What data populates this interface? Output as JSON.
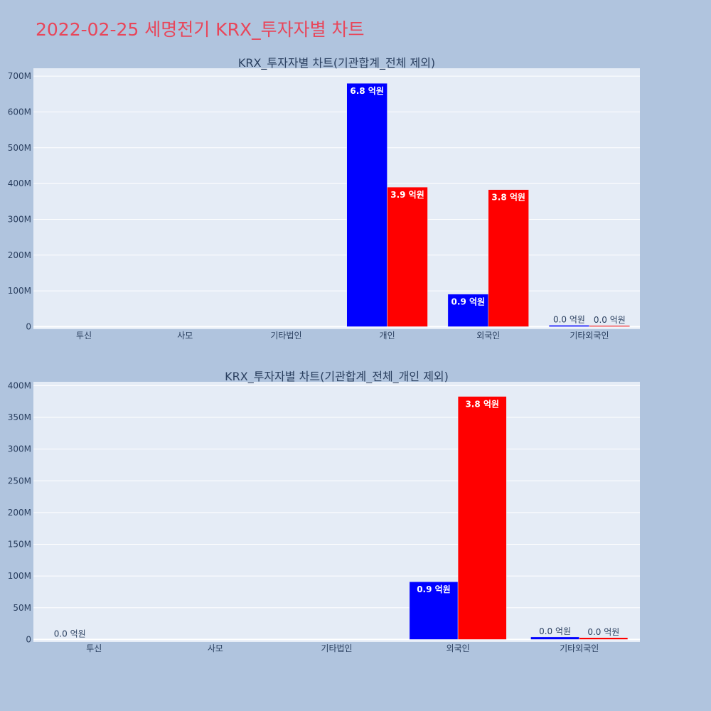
{
  "page": {
    "title": "2022-02-25 세명전기 KRX_투자자별 차트"
  },
  "colors": {
    "page_bg": "#b0c4de",
    "plot_bg": "#e5ecf6",
    "grid": "#ffffff",
    "title": "#e8465a",
    "text": "#2a3f5f",
    "buy": "#0000ff",
    "sell": "#ff0000"
  },
  "chart_data": [
    {
      "type": "bar",
      "title": "KRX_투자자별 차트(기관합계_전체 제외)",
      "categories": [
        "투신",
        "사모",
        "기타법인",
        "개인",
        "외국인",
        "기타외국인"
      ],
      "series": [
        {
          "color": "#0000ff",
          "values": [
            0,
            0,
            0,
            680000000,
            91000000,
            4000000
          ],
          "labels": [
            "",
            "",
            "",
            "6.8 억원",
            "0.9 억원",
            "0.0 억원"
          ]
        },
        {
          "color": "#ff0000",
          "values": [
            0,
            0,
            0,
            390000000,
            383000000,
            3000000
          ],
          "labels": [
            "",
            "",
            "",
            "3.9 억원",
            "3.8 억원",
            "0.0 억원"
          ]
        }
      ],
      "ylim": [
        -7000000,
        722000000
      ],
      "yticks": [
        0,
        100000000,
        200000000,
        300000000,
        400000000,
        500000000,
        600000000,
        700000000
      ],
      "yticklabels": [
        "0",
        "100M",
        "200M",
        "300M",
        "400M",
        "500M",
        "600M",
        "700M"
      ],
      "grid": true
    },
    {
      "type": "bar",
      "title": "KRX_투자자별 차트(기관합계_전체_개인 제외)",
      "categories": [
        "투신",
        "사모",
        "기타법인",
        "외국인",
        "기타외국인"
      ],
      "series": [
        {
          "color": "#0000ff",
          "values": [
            0,
            0,
            0,
            91000000,
            4000000
          ],
          "labels": [
            "0.0 억원",
            "",
            "",
            "0.9 억원",
            "0.0 억원"
          ]
        },
        {
          "color": "#ff0000",
          "values": [
            0,
            0,
            0,
            383000000,
            3000000
          ],
          "labels": [
            "",
            "",
            "",
            "3.8 억원",
            "0.0 억원"
          ]
        }
      ],
      "ylim": [
        -4000000,
        406000000
      ],
      "yticks": [
        0,
        50000000,
        100000000,
        150000000,
        200000000,
        250000000,
        300000000,
        350000000,
        400000000
      ],
      "yticklabels": [
        "0",
        "50M",
        "100M",
        "150M",
        "200M",
        "250M",
        "300M",
        "350M",
        "400M"
      ],
      "grid": true
    }
  ]
}
